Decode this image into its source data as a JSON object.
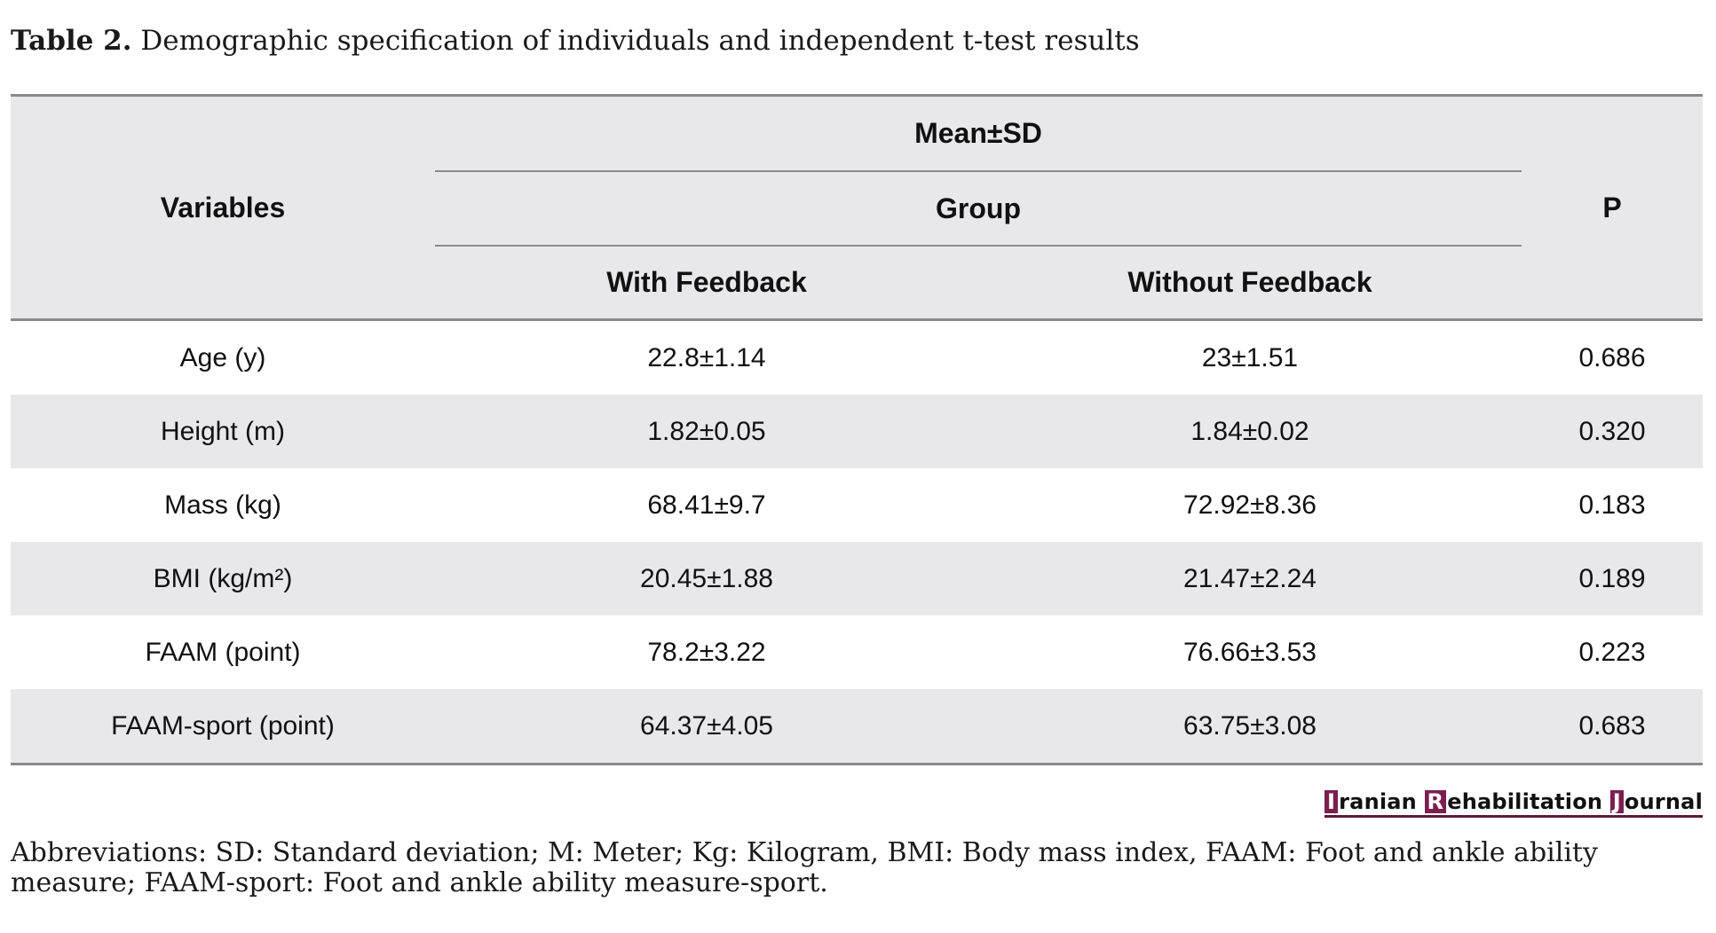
{
  "caption": {
    "label": "Table 2.",
    "text": " Demographic specification of individuals and independent t-test results"
  },
  "header": {
    "variables": "Variables",
    "mean_sd": "Mean±SD",
    "group": "Group",
    "with_feedback": "With Feedback",
    "without_feedback": "Without Feedback",
    "p": "P"
  },
  "rows": [
    {
      "variable": "Age (y)",
      "with_feedback": "22.8±1.14",
      "without_feedback": "23±1.51",
      "p": "0.686"
    },
    {
      "variable": "Height (m)",
      "with_feedback": "1.82±0.05",
      "without_feedback": "1.84±0.02",
      "p": "0.320"
    },
    {
      "variable": "Mass (kg)",
      "with_feedback": "68.41±9.7",
      "without_feedback": "72.92±8.36",
      "p": "0.183"
    },
    {
      "variable": "BMI (kg/m²)",
      "with_feedback": "20.45±1.88",
      "without_feedback": "21.47±2.24",
      "p": "0.189"
    },
    {
      "variable": "FAAM (point)",
      "with_feedback": "78.2±3.22",
      "without_feedback": "76.66±3.53",
      "p": "0.223"
    },
    {
      "variable": "FAAM-sport (point)",
      "with_feedback": "64.37±4.05",
      "without_feedback": "63.75±3.08",
      "p": "0.683"
    }
  ],
  "journal": {
    "i": "I",
    "ranian": "ranian ",
    "r": "R",
    "ehabilitation": "ehabilitation ",
    "j": "J",
    "ournal": "ournal"
  },
  "footnote": "Abbreviations: SD: Standard deviation; M: Meter; Kg: Kilogram, BMI: Body mass index, FAAM: Foot and ankle ability measure; FAAM-sport: Foot and ankle ability measure-sport.",
  "colors": {
    "header_bg": "#e8e8ea",
    "rule": "#8a8a8a",
    "logo_accent": "#7b1f4f"
  }
}
